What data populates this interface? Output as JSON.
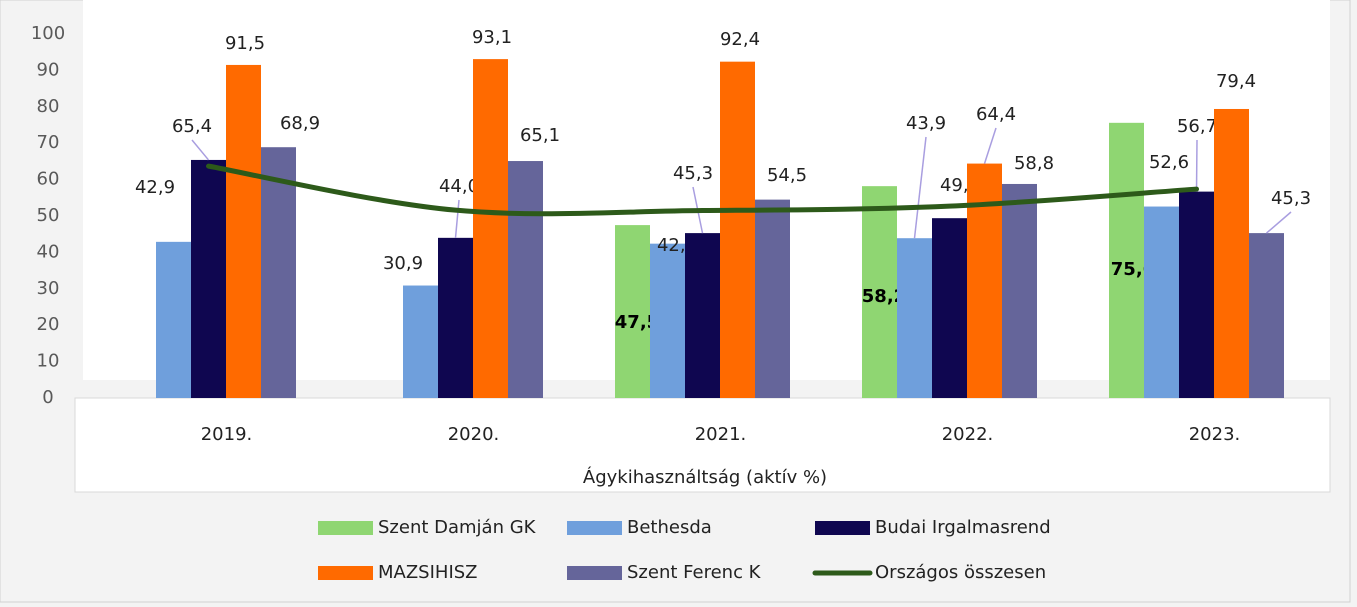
{
  "chart_data": {
    "type": "bar",
    "title": "Ágykihasználtság (aktív %)",
    "categories": [
      "2019.",
      "2020.",
      "2021.",
      "2022.",
      "2023."
    ],
    "ylim": [
      0,
      100
    ],
    "yticks": [
      0,
      10,
      20,
      30,
      40,
      50,
      60,
      70,
      80,
      90,
      100
    ],
    "grid": false,
    "legend": "bottom",
    "series": [
      {
        "name": "Szent Damján GK",
        "color": "#8fd672",
        "values": [
          null,
          null,
          47.5,
          58.2,
          75.6
        ],
        "value_labels": [
          null,
          null,
          "47,5",
          "58,2",
          "75,6"
        ]
      },
      {
        "name": "Bethesda",
        "color": "#6f9fdc",
        "values": [
          42.9,
          30.9,
          42.4,
          43.9,
          52.6
        ],
        "value_labels": [
          "42,9",
          "30,9",
          "42,4",
          "43,9",
          "52,6"
        ]
      },
      {
        "name": "Budai Irgalmasrend",
        "color": "#0f0650",
        "values": [
          65.4,
          44.0,
          45.3,
          49.4,
          56.7
        ],
        "value_labels": [
          "65,4",
          "44,0",
          "45,3",
          "49,4",
          "56,7"
        ]
      },
      {
        "name": "MAZSIHISZ",
        "color": "#ff6a00",
        "values": [
          91.5,
          93.1,
          92.4,
          64.4,
          79.4
        ],
        "value_labels": [
          "91,5",
          "93,1",
          "92,4",
          "64,4",
          "79,4"
        ]
      },
      {
        "name": "Szent Ferenc K",
        "color": "#65659a",
        "values": [
          68.9,
          65.1,
          54.5,
          58.8,
          45.3
        ],
        "value_labels": [
          "68,9",
          "65,1",
          "54,5",
          "58,8",
          "45,3"
        ]
      },
      {
        "name": "Országos összesen",
        "type": "line",
        "color": "#2d5a1a",
        "values": [
          63.7,
          51.6,
          51.5,
          52.7,
          57.4
        ]
      }
    ]
  }
}
